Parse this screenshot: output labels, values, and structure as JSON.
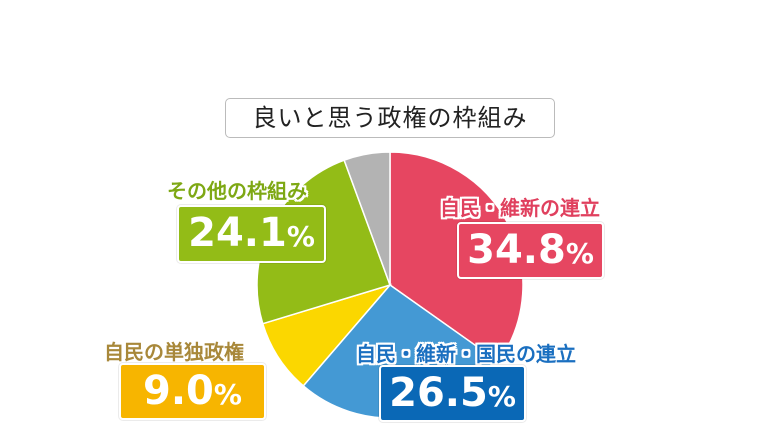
{
  "chart_data": {
    "type": "pie",
    "title": "良いと思う政権の枠組み",
    "start": "top",
    "direction": "clockwise",
    "slices": [
      {
        "label": "自民・維新の連立",
        "value": 34.8,
        "display": "34.8",
        "color": "#e64661",
        "label_color": "#e0405e"
      },
      {
        "label": "自民・維新・国民の連立",
        "value": 26.5,
        "display": "26.5",
        "color": "#4499d4",
        "label_color": "#1a6fc0",
        "box_color": "#0a68b6"
      },
      {
        "label": "自民の単独政権",
        "value": 9.0,
        "display": "9.0",
        "color": "#fbd700",
        "label_color": "#a8883a",
        "box_color": "#f7b500"
      },
      {
        "label": "その他の枠組み",
        "value": 24.1,
        "display": "24.1",
        "color": "#93bc17",
        "label_color": "#7ea814"
      },
      {
        "label": "",
        "value": 5.6,
        "color": "#b3b3b3"
      }
    ],
    "unit": "%"
  }
}
